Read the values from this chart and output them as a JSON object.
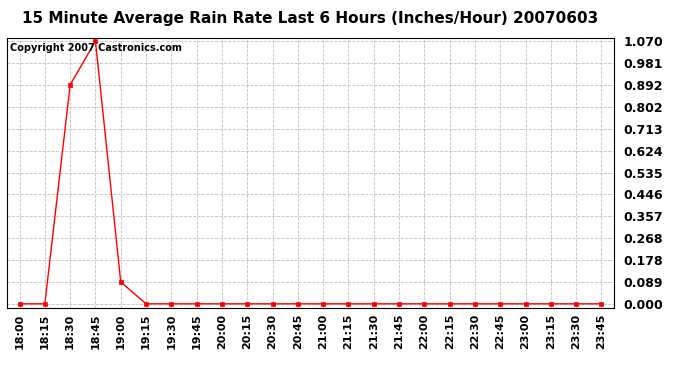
{
  "title": "15 Minute Average Rain Rate Last 6 Hours (Inches/Hour) 20070603",
  "copyright_text": "Copyright 2007 Castronics.com",
  "x_labels": [
    "18:00",
    "18:15",
    "18:30",
    "18:45",
    "19:00",
    "19:15",
    "19:30",
    "19:45",
    "20:00",
    "20:15",
    "20:30",
    "20:45",
    "21:00",
    "21:15",
    "21:30",
    "21:45",
    "22:00",
    "22:15",
    "22:30",
    "22:45",
    "23:00",
    "23:15",
    "23:30",
    "23:45"
  ],
  "y_values": [
    0.0,
    0.0,
    0.892,
    1.07,
    0.089,
    0.0,
    0.0,
    0.0,
    0.0,
    0.0,
    0.0,
    0.0,
    0.0,
    0.0,
    0.0,
    0.0,
    0.0,
    0.0,
    0.0,
    0.0,
    0.0,
    0.0,
    0.0,
    0.0
  ],
  "y_ticks": [
    0.0,
    0.089,
    0.178,
    0.268,
    0.357,
    0.446,
    0.535,
    0.624,
    0.713,
    0.802,
    0.892,
    0.981,
    1.07
  ],
  "y_max": 1.07,
  "line_color": "#ff0000",
  "marker_color": "#ff0000",
  "bg_color": "#ffffff",
  "grid_color": "#c0c0c0",
  "title_fontsize": 11,
  "copyright_fontsize": 7,
  "tick_fontsize": 8,
  "ytick_fontsize": 9
}
